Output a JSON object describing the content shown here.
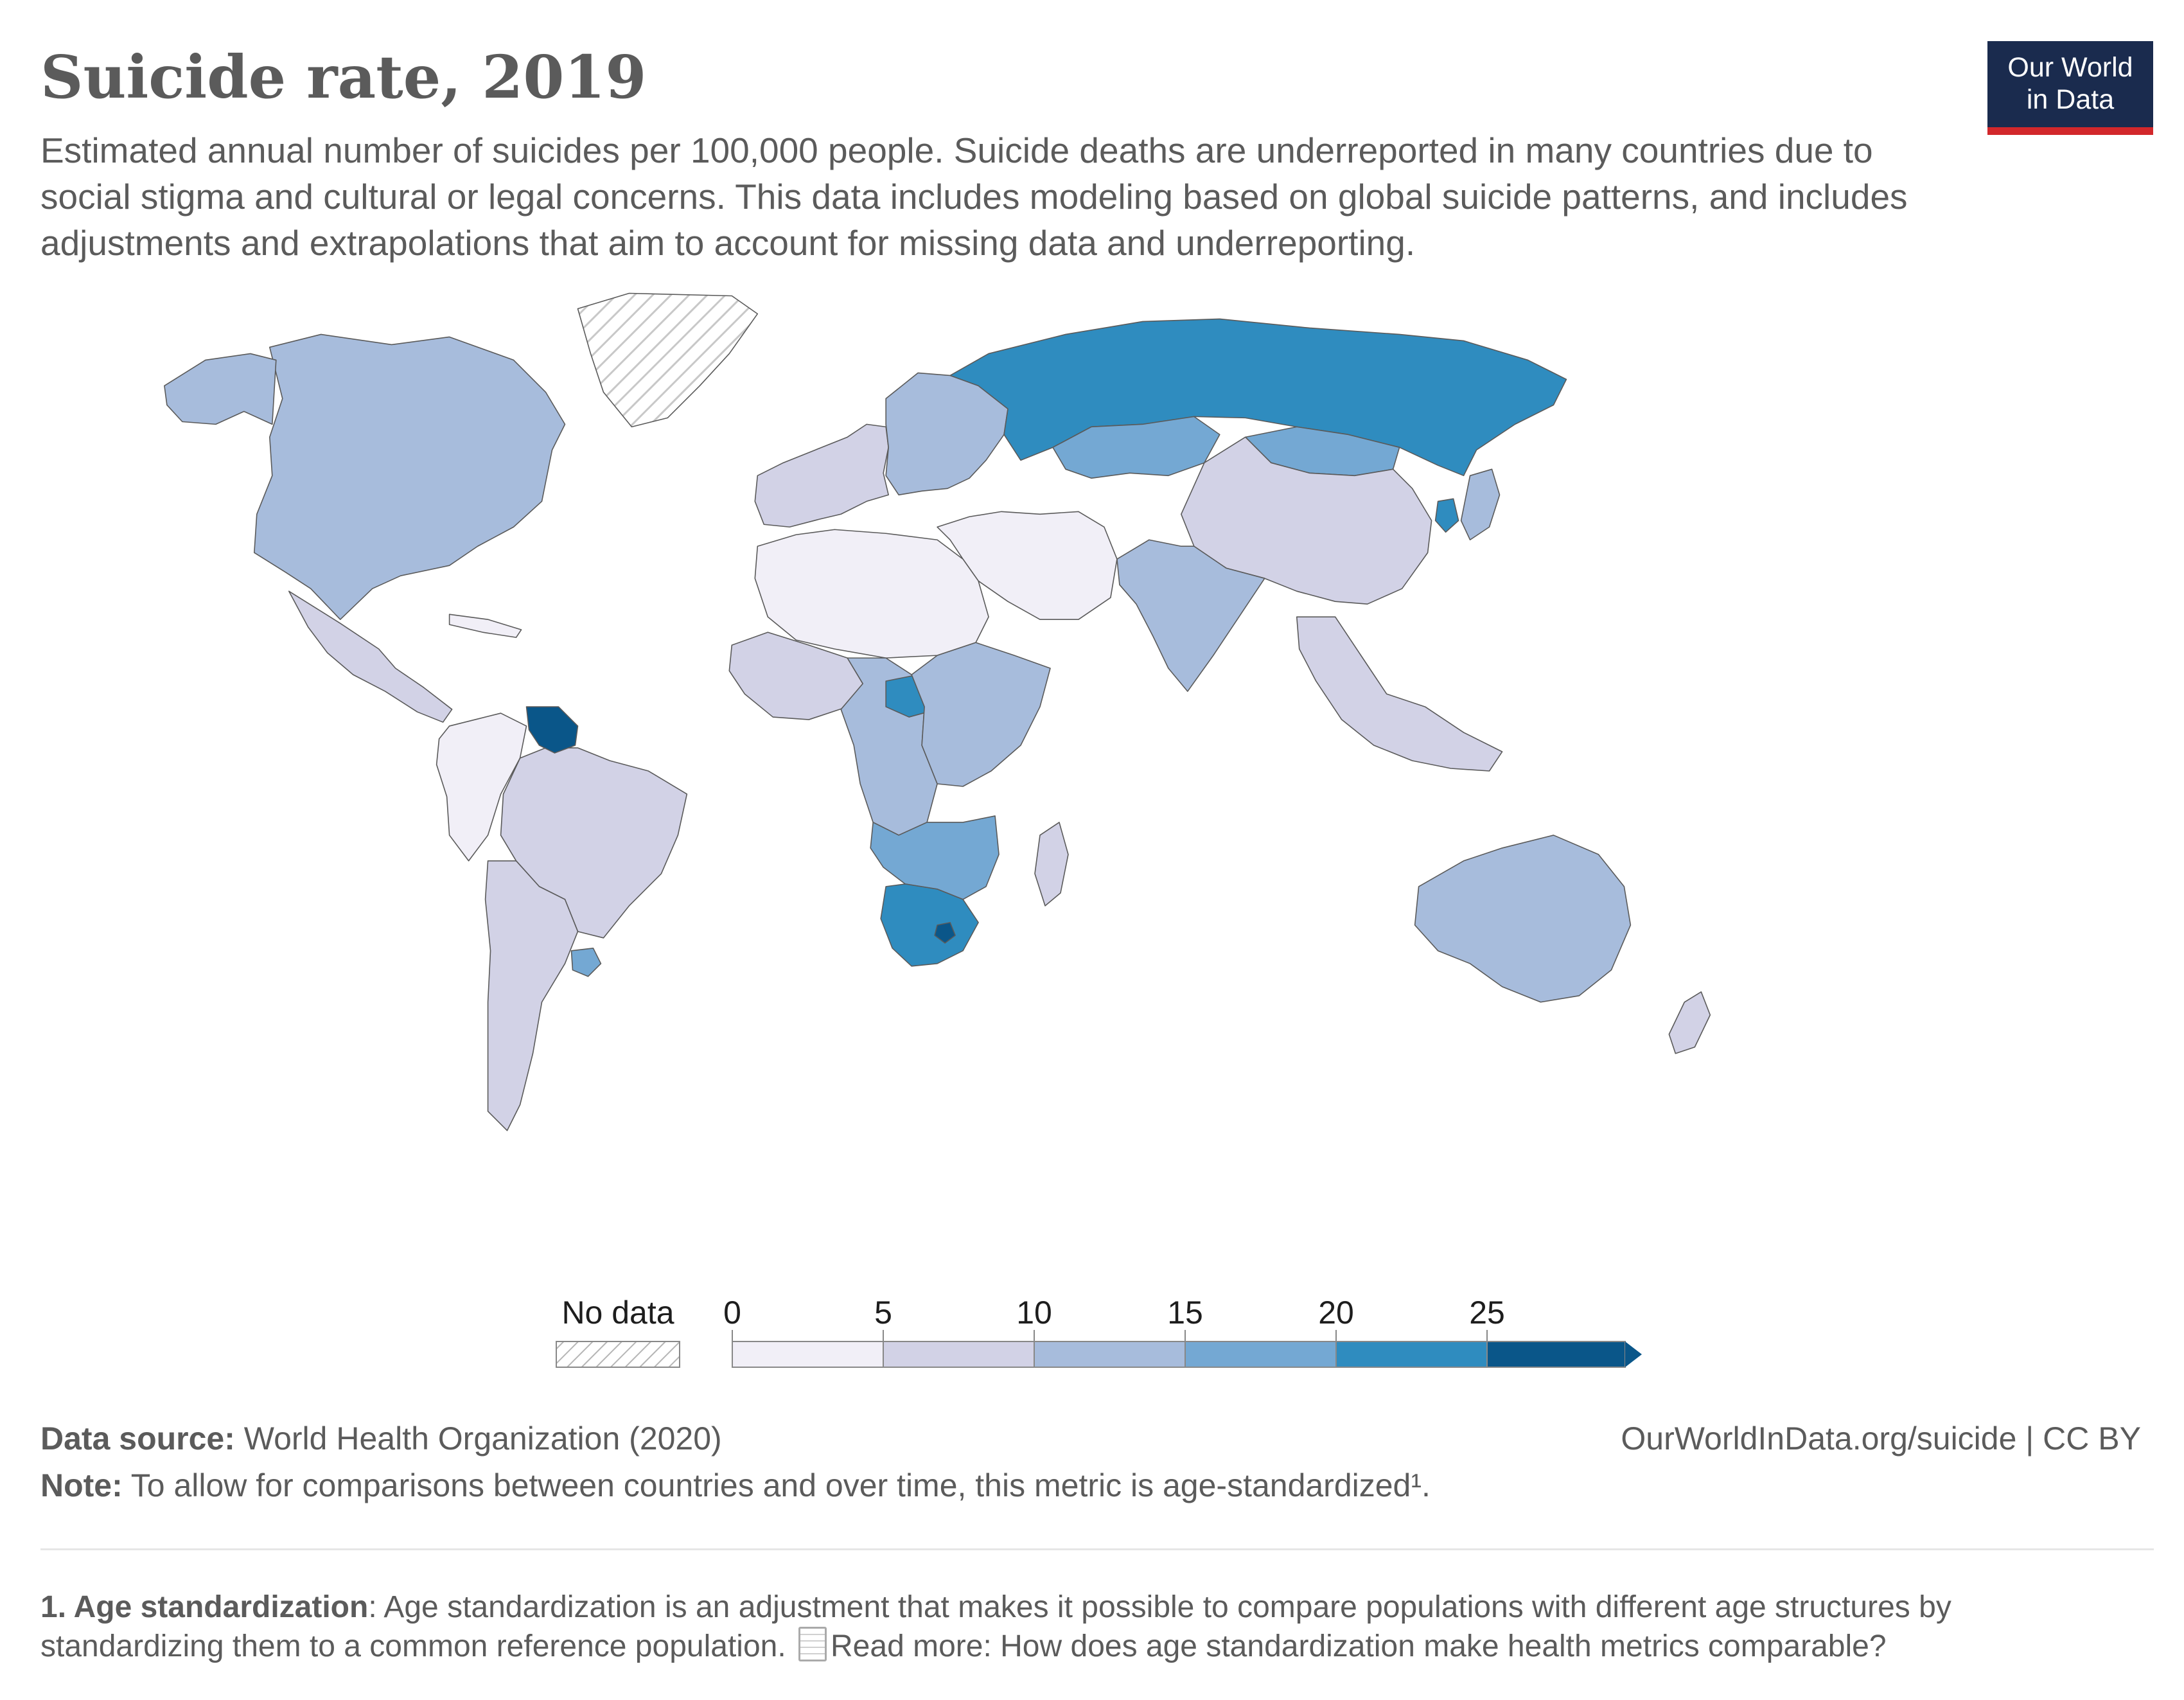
{
  "title": "Suicide rate, 2019",
  "subtitle": "Estimated annual number of suicides per 100,000 people. Suicide deaths are underreported in many countries due to social stigma and cultural or legal concerns. This data includes modeling based on global suicide patterns, and includes adjustments and extrapolations that aim to account for missing data and underreporting.",
  "logo": {
    "line1": "Our World",
    "line2": "in Data",
    "bg_color": "#1a2b4e",
    "accent_color": "#d2272b"
  },
  "map": {
    "projection": "world",
    "no_data_color": "hatched",
    "bin_colors": [
      "#f1eff7",
      "#d2d2e6",
      "#a7bcdc",
      "#74a8d3",
      "#2f8cbf",
      "#0a5689"
    ],
    "regions": [
      {
        "name": "North America",
        "bin": 2
      },
      {
        "name": "Greenland",
        "bin": "no-data"
      },
      {
        "name": "Alaska",
        "bin": 2
      },
      {
        "name": "Mexico and Central America",
        "bin": 1
      },
      {
        "name": "Caribbean",
        "bin": 0
      },
      {
        "name": "Northwest South America",
        "bin": 0
      },
      {
        "name": "Brazil",
        "bin": 1
      },
      {
        "name": "Guyana",
        "bin": 5
      },
      {
        "name": "Southern Cone",
        "bin": 1
      },
      {
        "name": "Uruguay",
        "bin": 3
      },
      {
        "name": "Western Europe",
        "bin": 1
      },
      {
        "name": "Eastern Europe",
        "bin": 2
      },
      {
        "name": "Russia",
        "bin": 4
      },
      {
        "name": "Kazakhstan",
        "bin": 3
      },
      {
        "name": "Mongolia",
        "bin": 3
      },
      {
        "name": "China",
        "bin": 1
      },
      {
        "name": "South Korea",
        "bin": 4
      },
      {
        "name": "Japan",
        "bin": 2
      },
      {
        "name": "South Asia",
        "bin": 2
      },
      {
        "name": "Middle East",
        "bin": 0
      },
      {
        "name": "North Africa",
        "bin": 0
      },
      {
        "name": "West Africa",
        "bin": 1
      },
      {
        "name": "Central Africa",
        "bin": 2
      },
      {
        "name": "Central African Republic",
        "bin": 4
      },
      {
        "name": "East Africa",
        "bin": 2
      },
      {
        "name": "Southern Africa",
        "bin": 3
      },
      {
        "name": "South Africa",
        "bin": 4
      },
      {
        "name": "Lesotho",
        "bin": 5
      },
      {
        "name": "Madagascar",
        "bin": 1
      },
      {
        "name": "Southeast Asia",
        "bin": 1
      },
      {
        "name": "Australia",
        "bin": 2
      },
      {
        "name": "New Zealand",
        "bin": 1
      }
    ]
  },
  "legend": {
    "no_data_label": "No data",
    "ticks": [
      "0",
      "5",
      "10",
      "15",
      "20",
      "25"
    ]
  },
  "source": {
    "label": "Data source:",
    "text": "World Health Organization (2020)"
  },
  "note": {
    "label": "Note:",
    "text": "To allow for comparisons between countries and over time, this metric is age-standardized¹."
  },
  "credit": "OurWorldInData.org/suicide | CC BY",
  "footnote": {
    "label": "1. Age standardization",
    "text": ": Age standardization is an adjustment that makes it possible to compare populations with different age structures by standardizing them to a common reference population.",
    "read_more": "Read more: How does age standardization make health metrics comparable?"
  }
}
